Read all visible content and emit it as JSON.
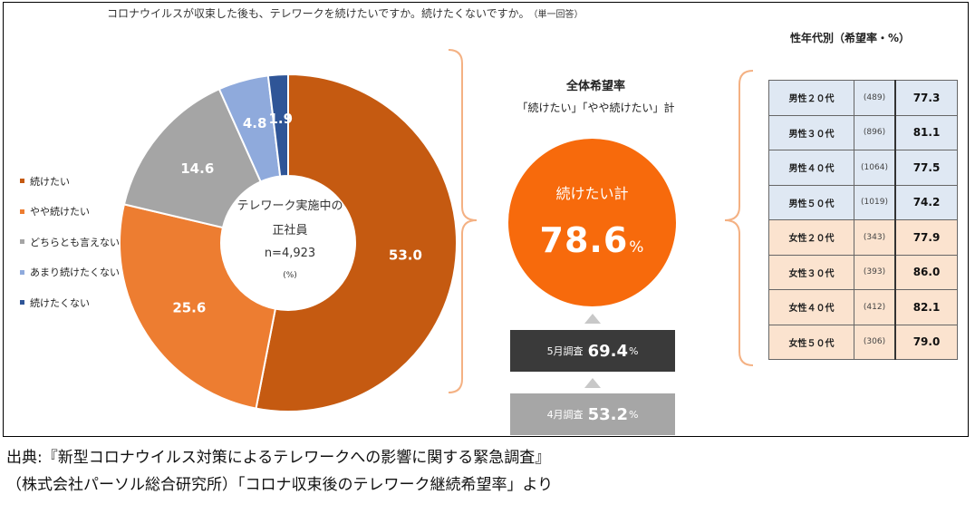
{
  "question": "コロナウイルスが収束した後も、テレワークを続けたいですか。続けたくないですか。",
  "question_note": "（単一回答）",
  "center_label": {
    "line1": "テレワーク実施中の",
    "line2": "正社員",
    "line3": "n=4,923",
    "line4": "(%)"
  },
  "overall": {
    "title": "全体希望率",
    "subtitle": "「続けたい」「やや続けたい」計",
    "circle_label": "続けたい計",
    "value": "78.6",
    "unit": "%"
  },
  "surveys": [
    {
      "label": "5月調査",
      "value": "69.4",
      "unit": "%"
    },
    {
      "label": "4月調査",
      "value": "53.2",
      "unit": "%"
    }
  ],
  "age_table": {
    "title": "性年代別（希望率・%）",
    "rows": [
      {
        "group": "男性２０代",
        "n": "(489)",
        "value": "77.3",
        "sex": "m"
      },
      {
        "group": "男性３０代",
        "n": "(896)",
        "value": "81.1",
        "sex": "m"
      },
      {
        "group": "男性４０代",
        "n": "(1064)",
        "value": "77.5",
        "sex": "m"
      },
      {
        "group": "男性５０代",
        "n": "(1019)",
        "value": "74.2",
        "sex": "m"
      },
      {
        "group": "女性２０代",
        "n": "(343)",
        "value": "77.9",
        "sex": "f"
      },
      {
        "group": "女性３０代",
        "n": "(393)",
        "value": "86.0",
        "sex": "f"
      },
      {
        "group": "女性４０代",
        "n": "(412)",
        "value": "82.1",
        "sex": "f"
      },
      {
        "group": "女性５０代",
        "n": "(306)",
        "value": "79.0",
        "sex": "f"
      }
    ]
  },
  "source": {
    "line1": "出典:『新型コロナウイルス対策によるテレワークへの影響に関する緊急調査』",
    "line2": "（株式会社パーソル総合研究所）「コロナ収束後のテレワーク継続希望率」より"
  },
  "colors": {
    "continue": "#c55a11",
    "somewhat_continue": "#ed7d31",
    "neutral": "#a5a5a5",
    "somewhat_not": "#8faadc",
    "not_continue": "#2f5597",
    "overall_circle": "#f76a0c",
    "survey_may": "#3a3a3a",
    "survey_apr": "#a6a6a6",
    "bracket": "#f4b183"
  },
  "chart_data": {
    "type": "pie",
    "categories": [
      "続けたい",
      "やや続けたい",
      "どちらとも言えない",
      "あまり続けたくない",
      "続けたくない"
    ],
    "values": [
      53.0,
      25.6,
      14.6,
      4.8,
      1.9
    ],
    "labels": [
      "53.0",
      "25.6",
      "14.6",
      "4.8",
      "1.9"
    ],
    "colors": [
      "#c55a11",
      "#ed7d31",
      "#a5a5a5",
      "#8faadc",
      "#2f5597"
    ],
    "legend": "left"
  }
}
